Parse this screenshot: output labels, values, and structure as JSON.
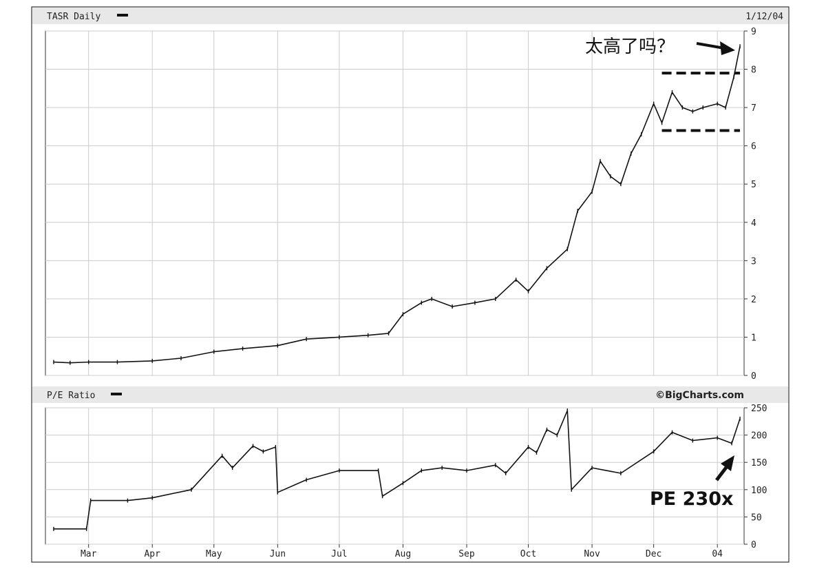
{
  "chart_data": [
    {
      "type": "line",
      "title": "TASR Daily",
      "date_label": "1/12/04",
      "xlabel": "",
      "ylabel": "",
      "ylim": [
        0,
        9
      ],
      "yticks": [
        0,
        1,
        2,
        3,
        4,
        5,
        6,
        7,
        8,
        9
      ],
      "x_tick_labels": [
        "Mar",
        "Apr",
        "May",
        "Jun",
        "Jul",
        "Aug",
        "Sep",
        "Oct",
        "Nov",
        "Dec",
        "04"
      ],
      "grid": true,
      "series": [
        {
          "x": [
            "2003-02-12",
            "2003-02-20",
            "2003-03-01",
            "2003-03-15",
            "2003-04-01",
            "2003-04-15",
            "2003-05-01",
            "2003-05-15",
            "2003-06-01",
            "2003-06-15",
            "2003-07-01",
            "2003-07-15",
            "2003-07-25",
            "2003-08-01",
            "2003-08-10",
            "2003-08-15",
            "2003-08-25",
            "2003-09-05",
            "2003-09-15",
            "2003-09-25",
            "2003-10-01",
            "2003-10-10",
            "2003-10-20",
            "2003-10-25",
            "2003-11-01",
            "2003-11-05",
            "2003-11-10",
            "2003-11-15",
            "2003-11-20",
            "2003-11-25",
            "2003-12-01",
            "2003-12-05",
            "2003-12-10",
            "2003-12-15",
            "2003-12-20",
            "2003-12-25",
            "2004-01-01",
            "2004-01-05",
            "2004-01-09",
            "2004-01-12"
          ],
          "values": [
            0.35,
            0.33,
            0.35,
            0.35,
            0.38,
            0.45,
            0.62,
            0.7,
            0.78,
            0.95,
            1.0,
            1.05,
            1.1,
            1.6,
            1.9,
            2.0,
            1.8,
            1.9,
            2.0,
            2.5,
            2.2,
            2.8,
            3.3,
            4.3,
            4.8,
            5.6,
            5.2,
            5.0,
            5.8,
            6.3,
            7.1,
            6.6,
            7.4,
            7.0,
            6.9,
            7.0,
            7.1,
            7.0,
            7.8,
            8.6
          ]
        }
      ]
    },
    {
      "type": "line",
      "title": "P/E Ratio",
      "credit": "©BigCharts.com",
      "xlabel": "",
      "ylabel": "",
      "ylim": [
        0,
        250
      ],
      "yticks": [
        0,
        50,
        100,
        150,
        200,
        250
      ],
      "x_tick_labels": [
        "Mar",
        "Apr",
        "May",
        "Jun",
        "Jul",
        "Aug",
        "Sep",
        "Oct",
        "Nov",
        "Dec",
        "04"
      ],
      "grid": true,
      "series": [
        {
          "x": [
            "2003-02-12",
            "2003-02-28",
            "2003-03-02",
            "2003-03-20",
            "2003-04-01",
            "2003-04-20",
            "2003-05-05",
            "2003-05-10",
            "2003-05-20",
            "2003-05-25",
            "2003-05-31",
            "2003-06-01",
            "2003-06-15",
            "2003-07-01",
            "2003-07-20",
            "2003-07-22",
            "2003-08-01",
            "2003-08-10",
            "2003-08-20",
            "2003-09-01",
            "2003-09-15",
            "2003-09-20",
            "2003-10-01",
            "2003-10-05",
            "2003-10-10",
            "2003-10-15",
            "2003-10-20",
            "2003-10-22",
            "2003-11-01",
            "2003-11-15",
            "2003-12-01",
            "2003-12-10",
            "2003-12-20",
            "2004-01-01",
            "2004-01-08",
            "2004-01-12"
          ],
          "values": [
            28,
            28,
            80,
            80,
            85,
            100,
            162,
            140,
            180,
            170,
            178,
            95,
            118,
            135,
            135,
            88,
            112,
            135,
            140,
            135,
            145,
            130,
            178,
            168,
            210,
            200,
            245,
            100,
            140,
            130,
            170,
            205,
            190,
            195,
            185,
            230
          ]
        }
      ]
    }
  ],
  "annotations": {
    "price_note": "太高了吗？",
    "pe_note": "PE 230x",
    "range_top": 7.9,
    "range_bottom": 6.4
  }
}
